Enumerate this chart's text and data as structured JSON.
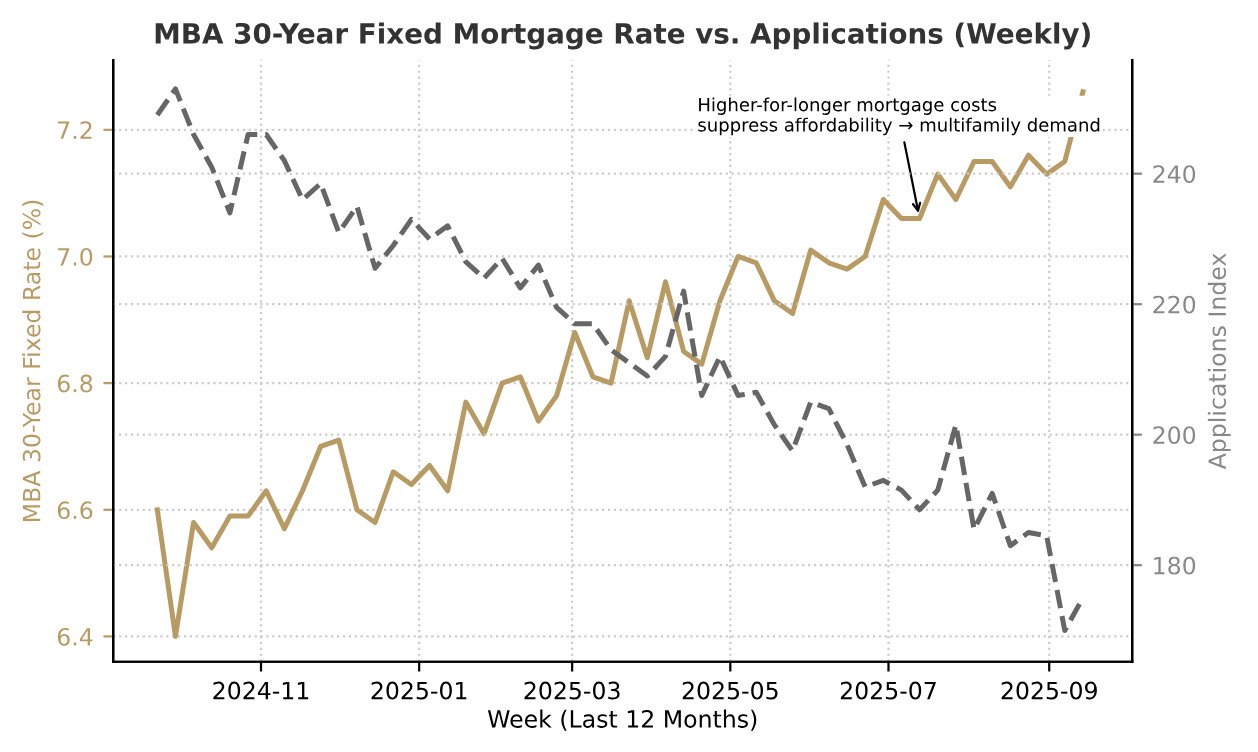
{
  "chart_data": {
    "type": "line",
    "title": "MBA 30-Year Fixed Mortgage Rate vs. Applications (Weekly)",
    "xlabel": "Week (Last 12 Months)",
    "ylabel": "MBA 30-Year Fixed Rate (%)",
    "y2label": "Applications Index",
    "x": [
      "2024-09-22",
      "2024-09-29",
      "2024-10-06",
      "2024-10-13",
      "2024-10-20",
      "2024-10-27",
      "2024-11-03",
      "2024-11-10",
      "2024-11-17",
      "2024-11-24",
      "2024-12-01",
      "2024-12-08",
      "2024-12-15",
      "2024-12-22",
      "2024-12-29",
      "2025-01-05",
      "2025-01-12",
      "2025-01-19",
      "2025-01-26",
      "2025-02-02",
      "2025-02-09",
      "2025-02-16",
      "2025-02-23",
      "2025-03-02",
      "2025-03-09",
      "2025-03-16",
      "2025-03-23",
      "2025-03-30",
      "2025-04-06",
      "2025-04-13",
      "2025-04-20",
      "2025-04-27",
      "2025-05-04",
      "2025-05-11",
      "2025-05-18",
      "2025-05-25",
      "2025-06-01",
      "2025-06-08",
      "2025-06-15",
      "2025-06-22",
      "2025-06-29",
      "2025-07-06",
      "2025-07-13",
      "2025-07-20",
      "2025-07-27",
      "2025-08-03",
      "2025-08-10",
      "2025-08-17",
      "2025-08-24",
      "2025-08-31",
      "2025-09-07",
      "2025-09-14"
    ],
    "series": [
      {
        "color": "#b89a63",
        "line_style": "solid",
        "values": [
          6.6,
          6.4,
          6.58,
          6.54,
          6.59,
          6.59,
          6.63,
          6.57,
          6.63,
          6.7,
          6.71,
          6.6,
          6.58,
          6.66,
          6.64,
          6.67,
          6.63,
          6.77,
          6.72,
          6.8,
          6.81,
          6.74,
          6.78,
          6.88,
          6.81,
          6.8,
          6.93,
          6.84,
          6.96,
          6.85,
          6.83,
          6.93,
          7.0,
          6.99,
          6.93,
          6.91,
          7.01,
          6.99,
          6.98,
          7.0,
          7.09,
          7.06,
          7.06,
          7.13,
          7.09,
          7.15,
          7.15,
          7.11,
          7.16,
          7.13,
          7.15,
          7.26
        ]
      },
      {
        "color": "#666666",
        "line_style": "dashed",
        "axis": "y2",
        "values": [
          249,
          253,
          246,
          241,
          234,
          246,
          246,
          242,
          236,
          238.5,
          231,
          235,
          225.5,
          229,
          233,
          230,
          232,
          226.5,
          224,
          227,
          222.5,
          226,
          219.5,
          217,
          217,
          213,
          211,
          209,
          212,
          222,
          206,
          212,
          206,
          206.5,
          201.5,
          197.5,
          205,
          204,
          198.5,
          192,
          193,
          191.5,
          188.5,
          191.5,
          201.5,
          185.5,
          191,
          183,
          185,
          184.5,
          170,
          175
        ]
      }
    ],
    "xlim": [
      "2024-09-05",
      "2025-10-03"
    ],
    "xticks": [
      "2024-11",
      "2025-01",
      "2025-03",
      "2025-05",
      "2025-07",
      "2025-09"
    ],
    "ylim": [
      6.36,
      7.31
    ],
    "yticks": [
      6.4,
      6.6,
      6.8,
      {
        "value": 7,
        "label": "7.0"
      },
      7.2
    ],
    "y2lim": [
      165.2,
      257.4
    ],
    "y2ticks": [
      180,
      200,
      220,
      240
    ],
    "annotations": [
      {
        "text": "Higher-for-longer mortgage costs\nsuppress affordability → multifamily demand",
        "x": "2025-07-13",
        "y": 7.06
      }
    ],
    "grid": true,
    "legend": false
  }
}
